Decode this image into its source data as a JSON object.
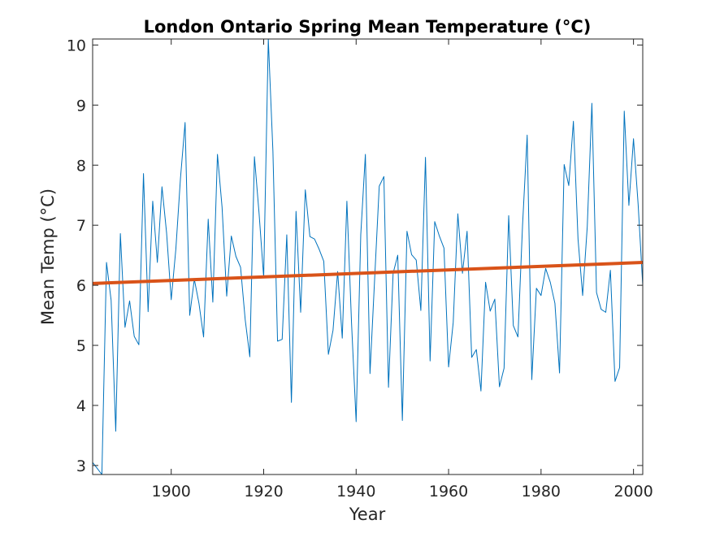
{
  "chart_data": {
    "type": "line",
    "title": "London Ontario Spring Mean Temperature (°C)",
    "xlabel": "Year",
    "ylabel": "Mean Temp (°C)",
    "xlim": [
      1883,
      2002
    ],
    "ylim": [
      2.85,
      10.1
    ],
    "xticks": [
      1900,
      1920,
      1940,
      1960,
      1980,
      2000
    ],
    "yticks": [
      3,
      4,
      5,
      6,
      7,
      8,
      9,
      10
    ],
    "grid": false,
    "series": [
      {
        "color": "#0072BD",
        "x": [
          1883,
          1884,
          1885,
          1886,
          1887,
          1888,
          1889,
          1890,
          1891,
          1892,
          1893,
          1894,
          1895,
          1896,
          1897,
          1898,
          1899,
          1900,
          1901,
          1902,
          1903,
          1904,
          1905,
          1906,
          1907,
          1908,
          1909,
          1910,
          1911,
          1912,
          1913,
          1914,
          1915,
          1916,
          1917,
          1918,
          1919,
          1920,
          1921,
          1922,
          1923,
          1924,
          1925,
          1926,
          1927,
          1928,
          1929,
          1930,
          1931,
          1932,
          1933,
          1934,
          1935,
          1936,
          1937,
          1938,
          1939,
          1940,
          1941,
          1942,
          1943,
          1944,
          1945,
          1946,
          1947,
          1948,
          1949,
          1950,
          1951,
          1952,
          1953,
          1954,
          1955,
          1956,
          1957,
          1958,
          1959,
          1960,
          1961,
          1962,
          1963,
          1964,
          1965,
          1966,
          1967,
          1968,
          1969,
          1970,
          1971,
          1972,
          1973,
          1974,
          1975,
          1976,
          1977,
          1978,
          1979,
          1980,
          1981,
          1982,
          1983,
          1984,
          1985,
          1986,
          1987,
          1988,
          1989,
          1990,
          1991,
          1992,
          1993,
          1994,
          1995,
          1996,
          1997,
          1998,
          1999,
          2000,
          2001,
          2002
        ],
        "y": [
          3.05,
          2.95,
          2.85,
          6.38,
          5.75,
          3.57,
          6.86,
          5.3,
          5.74,
          5.15,
          5.01,
          7.86,
          5.56,
          7.4,
          6.38,
          7.64,
          6.87,
          5.76,
          6.6,
          7.78,
          8.71,
          5.5,
          6.1,
          5.7,
          5.14,
          7.1,
          5.72,
          8.18,
          7.3,
          5.82,
          6.82,
          6.48,
          6.3,
          5.43,
          4.81,
          8.14,
          7.2,
          6.13,
          10.1,
          8.23,
          5.07,
          5.1,
          6.84,
          4.05,
          7.23,
          5.55,
          7.59,
          6.81,
          6.77,
          6.6,
          6.4,
          4.85,
          5.25,
          6.23,
          5.12,
          7.4,
          5.38,
          3.73,
          6.84,
          8.18,
          4.53,
          6.1,
          7.65,
          7.81,
          4.3,
          6.2,
          6.5,
          3.75,
          6.9,
          6.51,
          6.42,
          5.58,
          8.13,
          4.74,
          7.06,
          6.82,
          6.62,
          4.64,
          5.38,
          7.19,
          6.2,
          6.9,
          4.8,
          4.93,
          4.24,
          6.05,
          5.57,
          5.77,
          4.31,
          4.62,
          7.16,
          5.33,
          5.14,
          7.0,
          8.5,
          4.43,
          5.95,
          5.83,
          6.28,
          6.05,
          5.7,
          4.54,
          8.01,
          7.66,
          8.73,
          6.77,
          5.83,
          6.98,
          9.03,
          5.88,
          5.6,
          5.55,
          6.25,
          4.4,
          4.63,
          8.9,
          7.33,
          8.44,
          7.35,
          6.0
        ]
      },
      {
        "color": "#D95319",
        "x": [
          1883,
          2002
        ],
        "y": [
          6.03,
          6.38
        ]
      }
    ]
  }
}
